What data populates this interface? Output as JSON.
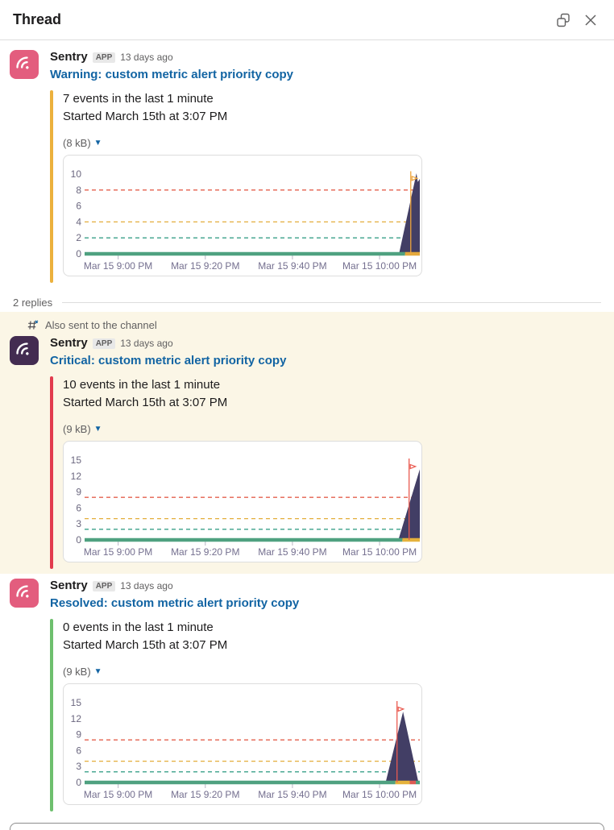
{
  "panel": {
    "title": "Thread"
  },
  "thread": {
    "replies_label": "2 replies",
    "also_sent_label": "Also sent to the channel"
  },
  "colors": {
    "link": "#1264a3",
    "warning_bar": "#ecb13d",
    "critical_bar": "#e23b4e",
    "resolved_bar": "#6ebf6e",
    "avatar_pink": "#e35d7e",
    "avatar_purple": "#432c51",
    "spike_fill": "#423e65",
    "baseline_green": "#4fa180"
  },
  "messages": [
    {
      "sender": "Sentry",
      "badge": "APP",
      "timestamp": "13 days ago",
      "title": "Warning: custom metric alert priority copy",
      "line1": "7 events in the last 1 minute",
      "line2": "Started March 15th at 3:07 PM",
      "size_label": "(8 kB)",
      "bar_color": "#ecb13d",
      "avatar_color": "#e35d7e"
    },
    {
      "sender": "Sentry",
      "badge": "APP",
      "timestamp": "13 days ago",
      "title": "Critical: custom metric alert priority copy",
      "line1": "10 events in the last 1 minute",
      "line2": "Started March 15th at 3:07 PM",
      "size_label": "(9 kB)",
      "bar_color": "#e23b4e",
      "avatar_color": "#432c51"
    },
    {
      "sender": "Sentry",
      "badge": "APP",
      "timestamp": "13 days ago",
      "title": "Resolved: custom metric alert priority copy",
      "line1": "0 events in the last 1 minute",
      "line2": "Started March 15th at 3:07 PM",
      "size_label": "(9 kB)",
      "bar_color": "#6ebf6e",
      "avatar_color": "#e35d7e"
    }
  ],
  "chart_data": [
    {
      "type": "area",
      "title": "Warning: custom metric alert priority copy",
      "x_labels": [
        "Mar 15 9:00 PM",
        "Mar 15 9:20 PM",
        "Mar 15 9:40 PM",
        "Mar 15 10:00 PM"
      ],
      "x_label_pos": [
        10,
        36,
        62,
        88
      ],
      "yticks": [
        10,
        8,
        6,
        4,
        2,
        0
      ],
      "ylim": [
        0,
        10.6
      ],
      "grid": false,
      "legend": "none",
      "thresholds": [
        {
          "label": "critical",
          "value": 8,
          "color": "#e4604e"
        },
        {
          "label": "warning",
          "value": 4,
          "color": "#e3ae3b"
        },
        {
          "label": "resolved",
          "value": 2,
          "color": "#3aa189"
        }
      ],
      "series_color": "#423e65",
      "spike": [
        [
          93.8,
          0
        ],
        [
          99.0,
          10.1
        ],
        [
          99.4,
          9.0
        ],
        [
          100,
          9.4
        ],
        [
          100,
          0
        ]
      ],
      "incident_line": {
        "x": 97.3,
        "top": 10.35,
        "flag": 9.4,
        "color": "#efa53c"
      },
      "status_bar": [
        {
          "from": 0,
          "to": 95.6,
          "color": "#4fa180"
        },
        {
          "from": 95.6,
          "to": 100,
          "color": "#e5a93c"
        }
      ]
    },
    {
      "type": "area",
      "title": "Critical: custom metric alert priority copy",
      "x_labels": [
        "Mar 15 9:00 PM",
        "Mar 15 9:20 PM",
        "Mar 15 9:40 PM",
        "Mar 15 10:00 PM"
      ],
      "x_label_pos": [
        10,
        36,
        62,
        88
      ],
      "yticks": [
        15,
        12,
        9,
        6,
        3,
        0
      ],
      "ylim": [
        0,
        15.8
      ],
      "grid": false,
      "legend": "none",
      "thresholds": [
        {
          "label": "critical",
          "value": 8,
          "color": "#e4604e"
        },
        {
          "label": "warning",
          "value": 4,
          "color": "#e3ae3b"
        },
        {
          "label": "resolved",
          "value": 2,
          "color": "#3aa189"
        }
      ],
      "series_color": "#423e65",
      "spike": [
        [
          93.6,
          0
        ],
        [
          100,
          13.3
        ],
        [
          100,
          0
        ]
      ],
      "incident_line": {
        "x": 96.8,
        "top": 15.3,
        "flag": 13.7,
        "color": "#ea5a50"
      },
      "status_bar": [
        {
          "from": 0,
          "to": 94.8,
          "color": "#4fa180"
        },
        {
          "from": 94.8,
          "to": 100,
          "color": "#e5b23c"
        }
      ]
    },
    {
      "type": "area",
      "title": "Resolved: custom metric alert priority copy",
      "x_labels": [
        "Mar 15 9:00 PM",
        "Mar 15 9:20 PM",
        "Mar 15 9:40 PM",
        "Mar 15 10:00 PM"
      ],
      "x_label_pos": [
        10,
        36,
        62,
        88
      ],
      "yticks": [
        15,
        12,
        9,
        6,
        3,
        0
      ],
      "ylim": [
        0,
        15.8
      ],
      "grid": false,
      "legend": "none",
      "thresholds": [
        {
          "label": "critical",
          "value": 8,
          "color": "#e4604e"
        },
        {
          "label": "warning",
          "value": 4,
          "color": "#e3ae3b"
        },
        {
          "label": "resolved",
          "value": 2,
          "color": "#3aa189"
        }
      ],
      "series_color": "#423e65",
      "spike": [
        [
          89.8,
          0
        ],
        [
          95.0,
          13.3
        ],
        [
          99.6,
          0
        ]
      ],
      "incident_line": {
        "x": 93.2,
        "top": 15.3,
        "flag": 13.7,
        "color": "#ea5a50"
      },
      "status_bar": [
        {
          "from": 0,
          "to": 92.7,
          "color": "#4fa180"
        },
        {
          "from": 92.7,
          "to": 97.0,
          "color": "#e5b23c"
        },
        {
          "from": 97.0,
          "to": 98.8,
          "color": "#dd5a52"
        },
        {
          "from": 98.8,
          "to": 100,
          "color": "#4fa180"
        }
      ]
    }
  ]
}
